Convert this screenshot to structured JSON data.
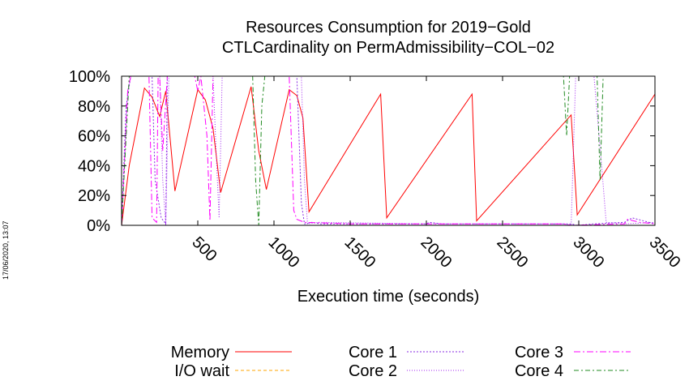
{
  "chart_data": {
    "type": "line",
    "title": "Resources Consumption for 2019−Gold",
    "subtitle": "CTLCardinality on PermAdmissibility−COL−02",
    "xlabel": "Execution time (seconds)",
    "ylabel": "",
    "xlim": [
      0,
      3500
    ],
    "ylim": [
      0,
      100
    ],
    "x_ticks": [
      500,
      1000,
      1500,
      2000,
      2500,
      3000,
      3500
    ],
    "x_tick_labels": [
      "500",
      "1000",
      "1500",
      "2000",
      "2500",
      "3000",
      "3500"
    ],
    "y_ticks": [
      0,
      20,
      40,
      60,
      80,
      100
    ],
    "y_tick_labels": [
      "0%",
      "20%",
      "40%",
      "60%",
      "80%",
      "100%"
    ],
    "grid": false,
    "legend_position": "bottom",
    "series": [
      {
        "name": "Memory",
        "color": "#ff0000",
        "dash": "",
        "x": [
          0,
          50,
          150,
          200,
          250,
          290,
          350,
          500,
          550,
          600,
          650,
          850,
          900,
          950,
          1100,
          1150,
          1190,
          1230,
          1700,
          1740,
          2300,
          2330,
          2950,
          2990,
          3500
        ],
        "y": [
          0,
          40,
          92,
          86,
          73,
          90,
          23,
          91,
          84,
          65,
          22,
          93,
          50,
          24,
          91,
          87,
          72,
          9,
          88,
          5,
          88,
          3,
          74,
          7,
          88
        ]
      },
      {
        "name": "I/O wait",
        "color": "#ffa500",
        "dash": "4,3",
        "x": [
          0,
          3500
        ],
        "y": [
          0,
          0
        ]
      },
      {
        "name": "Core 1",
        "color": "#8a2be2",
        "dash": "2,2",
        "x": [
          0,
          30,
          60,
          100,
          200,
          220,
          260,
          290,
          300,
          350,
          500,
          1150,
          1180,
          1200,
          1250,
          1300,
          1500,
          1700,
          1900,
          2000,
          2020,
          2100,
          2500,
          2950,
          2990,
          3100,
          3300,
          3350,
          3500
        ],
        "y": [
          0,
          80,
          100,
          100,
          100,
          30,
          5,
          1,
          100,
          100,
          100,
          100,
          15,
          1,
          2,
          1,
          1,
          1,
          1,
          1,
          2,
          1,
          1,
          1,
          0,
          1,
          2,
          5,
          1
        ]
      },
      {
        "name": "Core 2",
        "color": "#a020f0",
        "dash": "1,2",
        "x": [
          0,
          40,
          60,
          250,
          270,
          290,
          310,
          600,
          620,
          640,
          660,
          1180,
          1200,
          1220,
          1300,
          2000,
          2900,
          2950,
          2980,
          3100,
          3150,
          3180,
          3300,
          3500
        ],
        "y": [
          0,
          90,
          100,
          100,
          30,
          0,
          100,
          100,
          50,
          5,
          100,
          100,
          30,
          1,
          2,
          1,
          1,
          0,
          100,
          100,
          40,
          2,
          1,
          2
        ]
      },
      {
        "name": "Core 3",
        "color": "#ff00ff",
        "dash": "8,3,2,3",
        "x": [
          0,
          40,
          60,
          180,
          200,
          230,
          240,
          250,
          270,
          300,
          480,
          500,
          520,
          560,
          580,
          600,
          620,
          1100,
          1130,
          1150,
          1200,
          1500,
          2000,
          2500,
          2900,
          2950,
          3300,
          3320,
          3400,
          3500
        ],
        "y": [
          0,
          90,
          100,
          100,
          5,
          2,
          100,
          100,
          50,
          100,
          100,
          90,
          100,
          60,
          3,
          100,
          100,
          100,
          10,
          4,
          2,
          1,
          1,
          1,
          1,
          0,
          1,
          4,
          2,
          1
        ]
      },
      {
        "name": "Core 4",
        "color": "#228b22",
        "dash": "6,3,2,3",
        "x": [
          0,
          50,
          80,
          860,
          880,
          900,
          920,
          940,
          2900,
          2920,
          2940,
          3120,
          3140,
          3160,
          3500
        ],
        "y": [
          0,
          100,
          100,
          100,
          30,
          0,
          80,
          100,
          100,
          60,
          100,
          100,
          30,
          100,
          100
        ]
      }
    ]
  },
  "timestamp": "17/06/2020, 13:07"
}
